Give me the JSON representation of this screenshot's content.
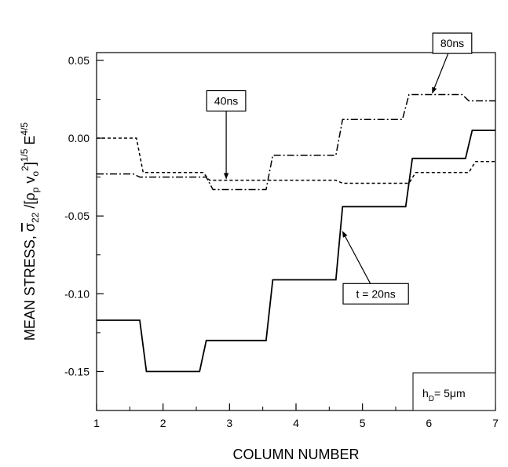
{
  "chart_data": {
    "type": "line",
    "xlabel": "COLUMN NUMBER",
    "ylabel": {
      "prefix": "MEAN STRESS,  ",
      "sigma": "σ",
      "sigma_sub": "22",
      "mid": " /[ρ",
      "rho_sub": "p",
      "v": " v",
      "v_sub": "o",
      "v_sup": "2",
      "close": "]",
      "close_sup": "1/5",
      "e": " E",
      "e_sup": "4/5"
    },
    "xlim": [
      1,
      7
    ],
    "ylim": [
      -0.175,
      0.055
    ],
    "xticks": [
      1,
      2,
      3,
      4,
      5,
      6,
      7
    ],
    "xtick_labels": [
      "1",
      "2",
      "3",
      "4",
      "5",
      "6",
      "7"
    ],
    "yticks": [
      0.05,
      0.0,
      -0.05,
      -0.1,
      -0.15
    ],
    "ytick_labels": [
      "0.05",
      "0.00",
      "-0.05",
      "-0.10",
      "-0.15"
    ],
    "grid": false,
    "series": [
      {
        "style": "solid",
        "x": [
          1.0,
          1.65,
          1.75,
          2.55,
          2.65,
          3.55,
          3.65,
          4.6,
          4.7,
          5.65,
          5.75,
          6.55,
          6.65,
          7.0
        ],
        "y": [
          -0.117,
          -0.117,
          -0.15,
          -0.15,
          -0.13,
          -0.13,
          -0.091,
          -0.091,
          -0.044,
          -0.044,
          -0.013,
          -0.013,
          0.005,
          0.005
        ]
      },
      {
        "style": "dashed",
        "x": [
          1.0,
          1.6,
          1.7,
          2.6,
          2.7,
          4.6,
          4.7,
          5.7,
          5.8,
          6.6,
          6.7,
          7.0
        ],
        "y": [
          0.0,
          0.0,
          -0.022,
          -0.022,
          -0.027,
          -0.027,
          -0.029,
          -0.029,
          -0.022,
          -0.022,
          -0.015,
          -0.015
        ]
      },
      {
        "style": "dashdot",
        "x": [
          1.0,
          1.55,
          1.65,
          2.65,
          2.75,
          3.55,
          3.65,
          4.6,
          4.7,
          5.6,
          5.7,
          6.5,
          6.6,
          7.0
        ],
        "y": [
          -0.023,
          -0.023,
          -0.025,
          -0.025,
          -0.033,
          -0.033,
          -0.011,
          -0.011,
          0.012,
          0.012,
          0.028,
          0.028,
          0.024,
          0.024
        ]
      }
    ],
    "annotations": [
      {
        "text": "t = 20ns",
        "box_x": 5.2,
        "box_y": -0.1,
        "arrow_to": [
          4.7,
          -0.06
        ]
      },
      {
        "text": "40ns",
        "box_x": 2.95,
        "box_y": 0.024,
        "arrow_to": [
          2.95,
          -0.026
        ]
      },
      {
        "text": "80ns",
        "box_x": 6.35,
        "box_y": 0.061,
        "arrow_to": [
          6.05,
          0.029
        ]
      }
    ],
    "note": {
      "main": "h",
      "sub": "D",
      "rest": "= 5μm"
    }
  }
}
